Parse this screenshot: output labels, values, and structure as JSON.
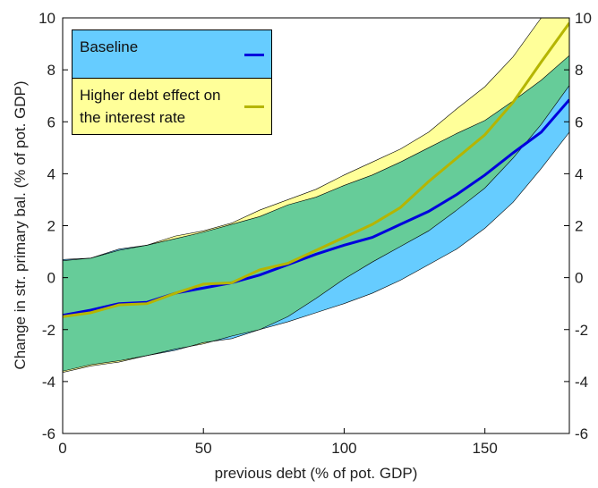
{
  "chart_data": {
    "type": "band-line",
    "x_label": "previous debt (% of pot. GDP)",
    "y_label": "Change in str. primary bal. (% of pot. GDP)",
    "x": [
      0,
      10,
      20,
      30,
      40,
      50,
      60,
      70,
      80,
      90,
      100,
      110,
      120,
      130,
      140,
      150,
      160,
      170,
      180
    ],
    "xlim": [
      0,
      180
    ],
    "xticks": [
      0,
      50,
      100,
      150
    ],
    "ylim": [
      -6,
      10
    ],
    "yticks": [
      -6,
      -4,
      -2,
      0,
      2,
      4,
      6,
      8,
      10
    ],
    "series": [
      {
        "name": "Baseline",
        "color": "#0000dd",
        "band_color": "#66ccff",
        "values": [
          -1.45,
          -1.25,
          -1.0,
          -0.95,
          -0.6,
          -0.4,
          -0.2,
          0.1,
          0.5,
          0.9,
          1.25,
          1.55,
          2.05,
          2.55,
          3.2,
          3.95,
          4.8,
          5.6,
          6.85
        ],
        "upper": [
          0.7,
          0.75,
          1.1,
          1.25,
          1.5,
          1.75,
          2.05,
          2.35,
          2.8,
          3.1,
          3.55,
          3.95,
          4.45,
          5.0,
          5.55,
          6.05,
          6.8,
          7.6,
          8.55
        ],
        "lower": [
          -3.6,
          -3.35,
          -3.2,
          -3.0,
          -2.8,
          -2.5,
          -2.35,
          -2.0,
          -1.7,
          -1.35,
          -1.0,
          -0.6,
          -0.1,
          0.5,
          1.1,
          1.9,
          2.9,
          4.2,
          5.6
        ]
      },
      {
        "name": "Higher debt effect on the interest rate",
        "color": "#b5b500",
        "band_color": "#ffff99",
        "values": [
          -1.5,
          -1.35,
          -1.05,
          -1.0,
          -0.6,
          -0.25,
          -0.2,
          0.3,
          0.55,
          1.05,
          1.55,
          2.05,
          2.7,
          3.7,
          4.6,
          5.5,
          6.75,
          8.3,
          9.8
        ],
        "upper": [
          0.65,
          0.75,
          1.05,
          1.25,
          1.6,
          1.8,
          2.1,
          2.6,
          3.0,
          3.4,
          3.95,
          4.45,
          4.95,
          5.6,
          6.5,
          7.35,
          8.5,
          10.0,
          11.5
        ],
        "lower": [
          -3.65,
          -3.4,
          -3.25,
          -3.0,
          -2.75,
          -2.55,
          -2.25,
          -2.0,
          -1.5,
          -0.8,
          -0.05,
          0.6,
          1.2,
          1.8,
          2.6,
          3.45,
          4.6,
          5.9,
          7.4
        ]
      }
    ]
  }
}
